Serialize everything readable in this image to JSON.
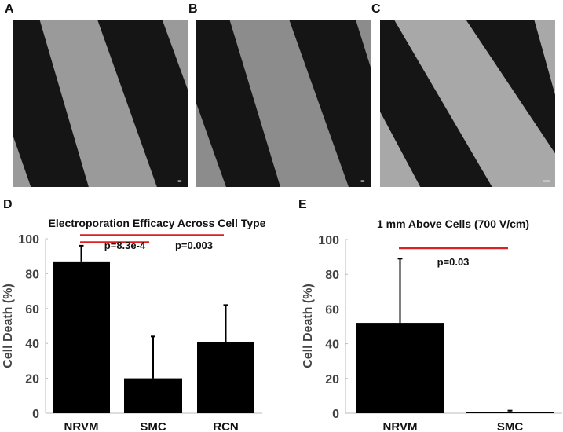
{
  "panels": {
    "a": {
      "label": "A",
      "band_color": "#9a9a9a"
    },
    "b": {
      "label": "B",
      "band_color": "#8c8c8c"
    },
    "c": {
      "label": "C",
      "band_color": "#a8a8a8"
    },
    "d": {
      "label": "D"
    },
    "e": {
      "label": "E"
    }
  },
  "chart_data": [
    {
      "type": "bar",
      "title": "Electroporation Efficacy Across Cell Type",
      "ylabel": "Cell Death (%)",
      "xlabel": "",
      "ylim": [
        0,
        100
      ],
      "yticks": [
        "0",
        "20",
        "40",
        "60",
        "80",
        "100"
      ],
      "categories": [
        "NRVM",
        "SMC",
        "RCN"
      ],
      "values": [
        87,
        20,
        41
      ],
      "error_upper": [
        96,
        44,
        62
      ],
      "bar_color": "#000000",
      "significance": [
        {
          "from": "NRVM",
          "to": "SMC",
          "y": 98,
          "label": "p=8.3e-4",
          "color": "#e02020"
        },
        {
          "from": "NRVM",
          "to": "RCN",
          "y": 102,
          "label": "p=0.003",
          "color": "#e02020"
        }
      ]
    },
    {
      "type": "bar",
      "title": "1 mm Above Cells (700 V/cm)",
      "ylabel": "Cell Death (%)",
      "xlabel": "",
      "ylim": [
        0,
        100
      ],
      "yticks": [
        "0",
        "20",
        "40",
        "60",
        "80",
        "100"
      ],
      "categories": [
        "NRVM",
        "SMC"
      ],
      "values": [
        52,
        0.5
      ],
      "error_upper": [
        89,
        1.5
      ],
      "bar_color": "#000000",
      "significance": [
        {
          "from": "NRVM",
          "to": "SMC",
          "y": 95,
          "label": "p=0.03",
          "color": "#e02020"
        }
      ]
    }
  ]
}
